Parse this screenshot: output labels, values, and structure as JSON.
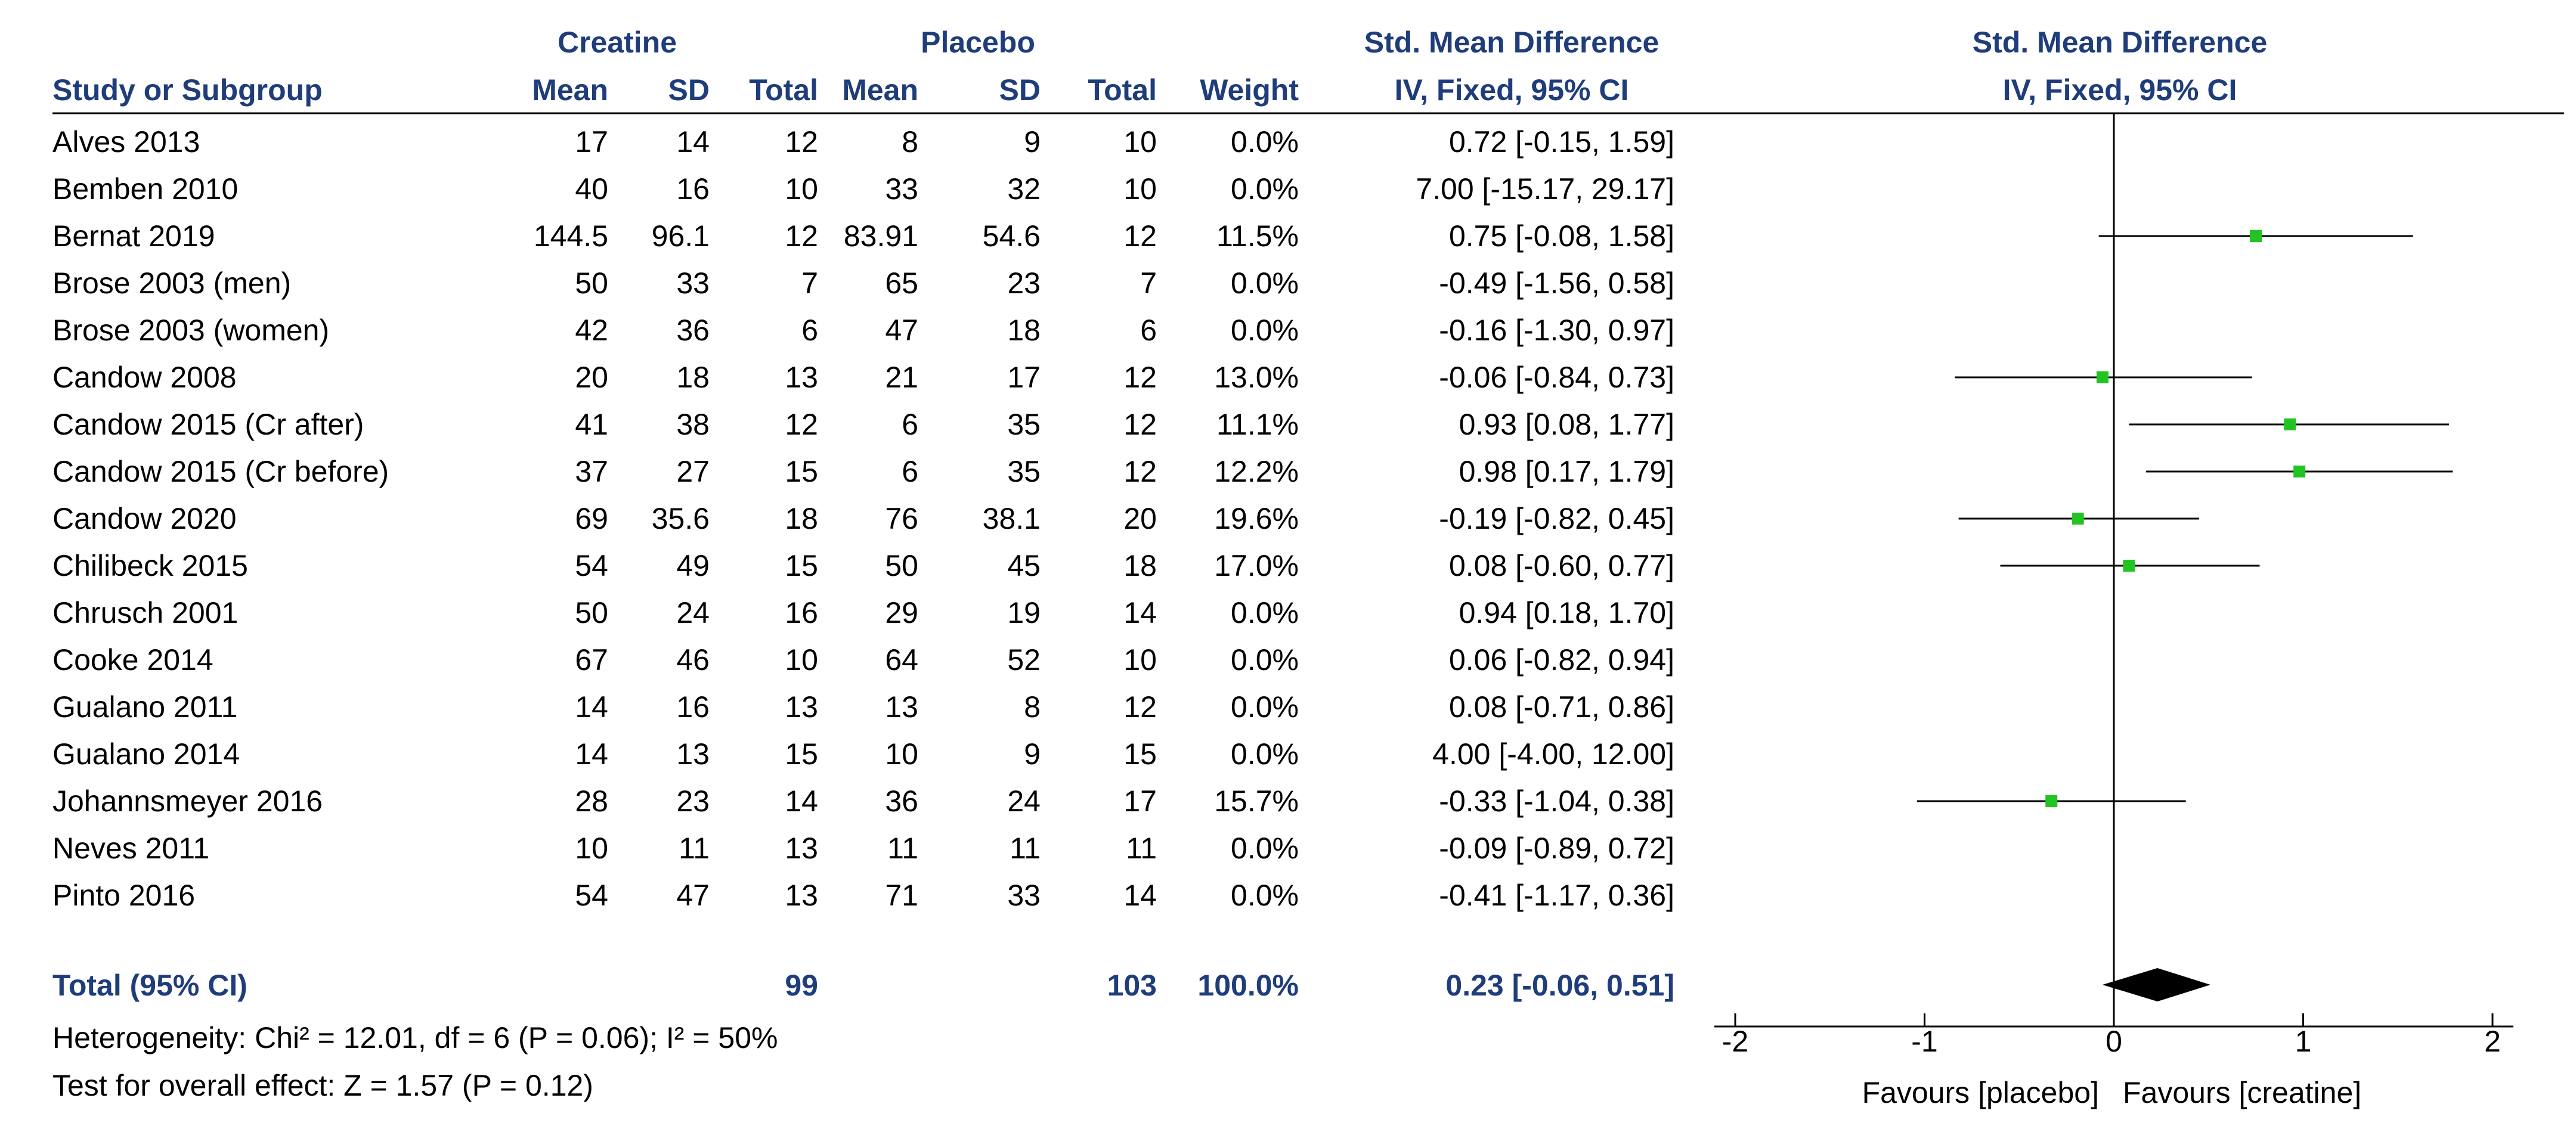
{
  "header": {
    "group1": "Creatine",
    "group2": "Placebo",
    "effect_title": "Std. Mean Difference",
    "effect_subtitle": "IV, Fixed, 95% CI",
    "plot_title": "Std. Mean Difference",
    "plot_subtitle": "IV, Fixed, 95% CI",
    "col_study": "Study or Subgroup",
    "col_mean1": "Mean",
    "col_sd1": "SD",
    "col_total1": "Total",
    "col_mean2": "Mean",
    "col_sd2": "SD",
    "col_total2": "Total",
    "col_weight": "Weight"
  },
  "rows": [
    {
      "study": "Alves 2013",
      "m1": "17",
      "sd1": "14",
      "n1": "12",
      "m2": "8",
      "sd2": "9",
      "n2": "10",
      "weight": "0.0%",
      "ci": "0.72 [-0.15, 1.59]"
    },
    {
      "study": "Bemben 2010",
      "m1": "40",
      "sd1": "16",
      "n1": "10",
      "m2": "33",
      "sd2": "32",
      "n2": "10",
      "weight": "0.0%",
      "ci": "7.00 [-15.17, 29.17]"
    },
    {
      "study": "Bernat 2019",
      "m1": "144.5",
      "sd1": "96.1",
      "n1": "12",
      "m2": "83.91",
      "sd2": "54.6",
      "n2": "12",
      "weight": "11.5%",
      "ci": "0.75 [-0.08, 1.58]"
    },
    {
      "study": "Brose 2003 (men)",
      "m1": "50",
      "sd1": "33",
      "n1": "7",
      "m2": "65",
      "sd2": "23",
      "n2": "7",
      "weight": "0.0%",
      "ci": "-0.49 [-1.56, 0.58]"
    },
    {
      "study": "Brose 2003 (women)",
      "m1": "42",
      "sd1": "36",
      "n1": "6",
      "m2": "47",
      "sd2": "18",
      "n2": "6",
      "weight": "0.0%",
      "ci": "-0.16 [-1.30, 0.97]"
    },
    {
      "study": "Candow 2008",
      "m1": "20",
      "sd1": "18",
      "n1": "13",
      "m2": "21",
      "sd2": "17",
      "n2": "12",
      "weight": "13.0%",
      "ci": "-0.06 [-0.84, 0.73]"
    },
    {
      "study": "Candow 2015 (Cr after)",
      "m1": "41",
      "sd1": "38",
      "n1": "12",
      "m2": "6",
      "sd2": "35",
      "n2": "12",
      "weight": "11.1%",
      "ci": "0.93 [0.08, 1.77]"
    },
    {
      "study": "Candow 2015 (Cr before)",
      "m1": "37",
      "sd1": "27",
      "n1": "15",
      "m2": "6",
      "sd2": "35",
      "n2": "12",
      "weight": "12.2%",
      "ci": "0.98 [0.17, 1.79]"
    },
    {
      "study": "Candow 2020",
      "m1": "69",
      "sd1": "35.6",
      "n1": "18",
      "m2": "76",
      "sd2": "38.1",
      "n2": "20",
      "weight": "19.6%",
      "ci": "-0.19 [-0.82, 0.45]"
    },
    {
      "study": "Chilibeck 2015",
      "m1": "54",
      "sd1": "49",
      "n1": "15",
      "m2": "50",
      "sd2": "45",
      "n2": "18",
      "weight": "17.0%",
      "ci": "0.08 [-0.60, 0.77]"
    },
    {
      "study": "Chrusch 2001",
      "m1": "50",
      "sd1": "24",
      "n1": "16",
      "m2": "29",
      "sd2": "19",
      "n2": "14",
      "weight": "0.0%",
      "ci": "0.94 [0.18, 1.70]"
    },
    {
      "study": "Cooke 2014",
      "m1": "67",
      "sd1": "46",
      "n1": "10",
      "m2": "64",
      "sd2": "52",
      "n2": "10",
      "weight": "0.0%",
      "ci": "0.06 [-0.82, 0.94]"
    },
    {
      "study": "Gualano 2011",
      "m1": "14",
      "sd1": "16",
      "n1": "13",
      "m2": "13",
      "sd2": "8",
      "n2": "12",
      "weight": "0.0%",
      "ci": "0.08 [-0.71, 0.86]"
    },
    {
      "study": "Gualano 2014",
      "m1": "14",
      "sd1": "13",
      "n1": "15",
      "m2": "10",
      "sd2": "9",
      "n2": "15",
      "weight": "0.0%",
      "ci": "4.00 [-4.00, 12.00]"
    },
    {
      "study": "Johannsmeyer 2016",
      "m1": "28",
      "sd1": "23",
      "n1": "14",
      "m2": "36",
      "sd2": "24",
      "n2": "17",
      "weight": "15.7%",
      "ci": "-0.33 [-1.04, 0.38]"
    },
    {
      "study": "Neves 2011",
      "m1": "10",
      "sd1": "11",
      "n1": "13",
      "m2": "11",
      "sd2": "11",
      "n2": "11",
      "weight": "0.0%",
      "ci": "-0.09 [-0.89, 0.72]"
    },
    {
      "study": "Pinto 2016",
      "m1": "54",
      "sd1": "47",
      "n1": "13",
      "m2": "71",
      "sd2": "33",
      "n2": "14",
      "weight": "0.0%",
      "ci": "-0.41 [-1.17, 0.36]"
    }
  ],
  "total": {
    "label": "Total (95% CI)",
    "n1": "99",
    "n2": "103",
    "weight": "100.0%",
    "ci": "0.23 [-0.06, 0.51]"
  },
  "footer": {
    "heterogeneity": "Heterogeneity: Chi² = 12.01, df = 6 (P = 0.06); I² = 50%",
    "overall": "Test for overall effect: Z = 1.57 (P = 0.12)"
  },
  "axis": {
    "favours_left": "Favours [placebo]",
    "favours_right": "Favours [creatine]"
  },
  "chart_data": {
    "type": "forest",
    "title": "Std. Mean Difference",
    "subtitle": "IV, Fixed, 95% CI",
    "xlim": [
      -2,
      2
    ],
    "ticks": [
      -2,
      -1,
      0,
      1,
      2
    ],
    "tick_labels": [
      "-2",
      "-1",
      "0",
      "1",
      "2"
    ],
    "marker_color": "#22c422",
    "studies": [
      {
        "name": "Alves 2013",
        "est": 0.72,
        "lo": -0.15,
        "hi": 1.59,
        "weight": 0.0
      },
      {
        "name": "Bemben 2010",
        "est": 7.0,
        "lo": -15.17,
        "hi": 29.17,
        "weight": 0.0
      },
      {
        "name": "Bernat 2019",
        "est": 0.75,
        "lo": -0.08,
        "hi": 1.58,
        "weight": 11.5
      },
      {
        "name": "Brose 2003 (men)",
        "est": -0.49,
        "lo": -1.56,
        "hi": 0.58,
        "weight": 0.0
      },
      {
        "name": "Brose 2003 (women)",
        "est": -0.16,
        "lo": -1.3,
        "hi": 0.97,
        "weight": 0.0
      },
      {
        "name": "Candow 2008",
        "est": -0.06,
        "lo": -0.84,
        "hi": 0.73,
        "weight": 13.0
      },
      {
        "name": "Candow 2015 (Cr after)",
        "est": 0.93,
        "lo": 0.08,
        "hi": 1.77,
        "weight": 11.1
      },
      {
        "name": "Candow 2015 (Cr before)",
        "est": 0.98,
        "lo": 0.17,
        "hi": 1.79,
        "weight": 12.2
      },
      {
        "name": "Candow 2020",
        "est": -0.19,
        "lo": -0.82,
        "hi": 0.45,
        "weight": 19.6
      },
      {
        "name": "Chilibeck 2015",
        "est": 0.08,
        "lo": -0.6,
        "hi": 0.77,
        "weight": 17.0
      },
      {
        "name": "Chrusch 2001",
        "est": 0.94,
        "lo": 0.18,
        "hi": 1.7,
        "weight": 0.0
      },
      {
        "name": "Cooke 2014",
        "est": 0.06,
        "lo": -0.82,
        "hi": 0.94,
        "weight": 0.0
      },
      {
        "name": "Gualano 2011",
        "est": 0.08,
        "lo": -0.71,
        "hi": 0.86,
        "weight": 0.0
      },
      {
        "name": "Gualano 2014",
        "est": 4.0,
        "lo": -4.0,
        "hi": 12.0,
        "weight": 0.0
      },
      {
        "name": "Johannsmeyer 2016",
        "est": -0.33,
        "lo": -1.04,
        "hi": 0.38,
        "weight": 15.7
      },
      {
        "name": "Neves 2011",
        "est": -0.09,
        "lo": -0.89,
        "hi": 0.72,
        "weight": 0.0
      },
      {
        "name": "Pinto 2016",
        "est": -0.41,
        "lo": -1.17,
        "hi": 0.36,
        "weight": 0.0
      }
    ],
    "pooled": {
      "est": 0.23,
      "lo": -0.06,
      "hi": 0.51
    }
  }
}
